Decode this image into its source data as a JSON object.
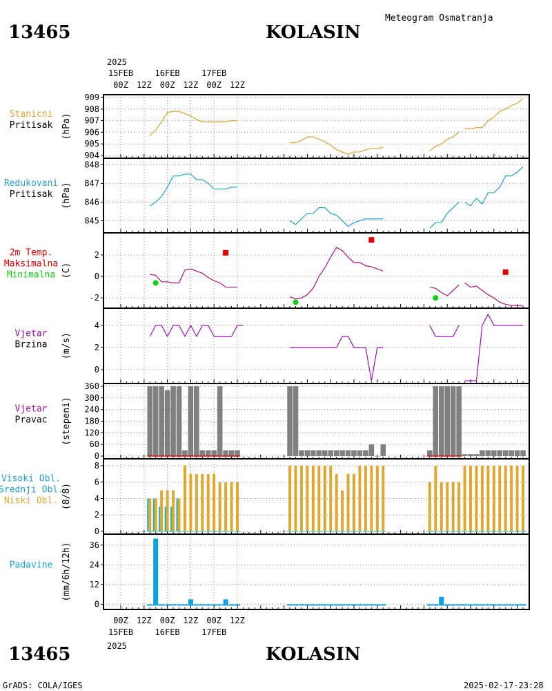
{
  "header": {
    "station_id": "13465",
    "station_name": "KOLASIN",
    "product": "Meteogram Osmatranja",
    "year": "2025",
    "footer_left": "GrADS: COLA/IGES",
    "footer_right": "2025-02-17-23:28"
  },
  "time_axis": {
    "labels": [
      "00Z",
      "12Z",
      "00Z",
      "12Z",
      "00Z",
      "12Z"
    ],
    "dates": [
      "15FEB",
      "16FEB",
      "17FEB"
    ]
  },
  "colors": {
    "station_pressure": "#e0a030",
    "reduced_pressure": "#20a0d0",
    "temp_line": "#b0107a",
    "max_temp": "#e00000",
    "min_temp": "#10d010",
    "wind_speed": "#a010b0",
    "wind_dir_bar": "#808080",
    "low_cloud": "#e0a830",
    "mid_cloud": "#20b0b0",
    "precip": "#10a0e0"
  },
  "chart_data": [
    {
      "type": "line",
      "name_lines": [
        "Stanicni",
        "Pritisak"
      ],
      "ylabel": "(hPa)",
      "ylim": [
        904,
        909
      ],
      "yticks": [
        904,
        905,
        906,
        907,
        908,
        909
      ],
      "segments": [
        {
          "x": [
            5,
            6,
            7,
            8,
            9,
            10,
            11,
            12,
            13,
            14,
            15,
            16,
            17,
            18,
            19,
            20
          ],
          "y": [
            905.7,
            906.2,
            906.9,
            907.7,
            907.8,
            907.8,
            907.6,
            907.4,
            907.1,
            906.9,
            906.9,
            906.9,
            906.9,
            906.9,
            907.0,
            907.0
          ]
        },
        {
          "x": [
            29,
            30,
            31,
            32,
            33,
            34,
            35,
            36,
            37,
            38,
            39,
            40,
            41,
            42,
            43,
            44,
            45
          ],
          "y": [
            905.1,
            905.1,
            905.3,
            905.6,
            905.6,
            905.4,
            905.2,
            904.9,
            904.5,
            904.3,
            904.1,
            904.3,
            904.3,
            904.5,
            904.6,
            904.6,
            904.7
          ]
        },
        {
          "x": [
            53,
            54,
            55,
            56,
            57,
            58
          ],
          "y": [
            904.4,
            904.8,
            905.0,
            905.4,
            905.6,
            906.0
          ]
        },
        {
          "x": [
            59,
            60,
            61,
            62,
            63,
            64,
            65,
            66,
            67,
            68,
            69
          ],
          "y": [
            906.3,
            906.3,
            906.4,
            906.4,
            907.0,
            907.3,
            907.8,
            908.0,
            908.3,
            908.5,
            908.9
          ]
        }
      ]
    },
    {
      "type": "line",
      "name_lines": [
        "Redukovani",
        "Pritisak"
      ],
      "ylabel": "(hPa)",
      "ylim": [
        844.5,
        848.2
      ],
      "yticks": [
        845,
        846,
        847,
        848
      ],
      "segments": [
        {
          "x": [
            5,
            6,
            7,
            8,
            9,
            10,
            11,
            12,
            13,
            14,
            15,
            16,
            17,
            18,
            19,
            20
          ],
          "y": [
            845.8,
            846.0,
            846.3,
            846.8,
            847.4,
            847.4,
            847.5,
            847.5,
            847.2,
            847.2,
            847.0,
            846.7,
            846.7,
            846.7,
            846.8,
            846.8
          ]
        },
        {
          "x": [
            29,
            30,
            31,
            32,
            33,
            34,
            35,
            36,
            37,
            38,
            39,
            40,
            41,
            42,
            43,
            44,
            45
          ],
          "y": [
            845.0,
            844.8,
            845.1,
            845.4,
            845.4,
            845.7,
            845.7,
            845.4,
            845.3,
            845.0,
            844.7,
            844.9,
            845.0,
            845.1,
            845.1,
            845.1,
            845.1
          ]
        },
        {
          "x": [
            53,
            54,
            55,
            56,
            57,
            58
          ],
          "y": [
            844.6,
            844.9,
            844.9,
            845.4,
            845.7,
            846.0
          ]
        },
        {
          "x": [
            59,
            60,
            61,
            62,
            63,
            64,
            65,
            66,
            67,
            68,
            69
          ],
          "y": [
            846.0,
            845.8,
            846.2,
            845.9,
            846.5,
            846.5,
            846.8,
            847.4,
            847.4,
            847.6,
            847.9
          ]
        }
      ]
    },
    {
      "type": "line",
      "name_lines": [
        "2m Temp.",
        "Maksimalna",
        "Minimalna"
      ],
      "ylabel": "(C)",
      "ylim": [
        -2.7,
        3.8
      ],
      "yticks": [
        -2,
        0,
        2
      ],
      "segments": [
        {
          "x": [
            5,
            6,
            7,
            8,
            9,
            10,
            11,
            12,
            13,
            14,
            15,
            16,
            17,
            18,
            19,
            20
          ],
          "y": [
            0.2,
            0.1,
            -0.5,
            -0.5,
            -0.6,
            -0.6,
            0.6,
            0.7,
            0.5,
            0.3,
            -0.1,
            -0.4,
            -0.6,
            -1.0,
            -1.0,
            -1.0
          ]
        },
        {
          "x": [
            29,
            30,
            31,
            32,
            33,
            34,
            35,
            36,
            37,
            38,
            39,
            40,
            41,
            42,
            43,
            44,
            45
          ],
          "y": [
            -1.9,
            -2.1,
            -2.0,
            -1.7,
            -1.1,
            0.0,
            0.8,
            1.8,
            2.7,
            2.4,
            1.8,
            1.3,
            1.3,
            1.0,
            0.9,
            0.7,
            0.5
          ]
        },
        {
          "x": [
            53,
            54,
            55,
            56,
            57,
            58
          ],
          "y": [
            -1.0,
            -1.1,
            -1.5,
            -1.8,
            -1.3,
            -0.8
          ]
        },
        {
          "x": [
            59,
            60,
            61,
            62,
            63,
            64,
            65,
            66,
            67,
            68,
            69
          ],
          "y": [
            -0.6,
            -1.0,
            -0.9,
            -1.3,
            -1.7,
            -2.0,
            -2.4,
            -2.6,
            -2.7,
            -2.7,
            -2.7
          ]
        }
      ],
      "max_points": {
        "x": [
          18,
          43,
          66
        ],
        "y": [
          2.2,
          3.4,
          0.4
        ]
      },
      "min_points": {
        "x": [
          6,
          30,
          54
        ],
        "y": [
          -0.6,
          -2.4,
          -2.0
        ]
      }
    },
    {
      "type": "line",
      "name_lines": [
        "Vjetar",
        "Brzina"
      ],
      "ylabel": "(m/s)",
      "ylim": [
        -1.0,
        5.3
      ],
      "yticks": [
        0,
        2,
        4
      ],
      "segments": [
        {
          "x": [
            5,
            6,
            7,
            8,
            9,
            10,
            11,
            12,
            13,
            14,
            15,
            16,
            17,
            18,
            19,
            20
          ],
          "y": [
            3,
            4,
            4,
            3,
            4,
            4,
            3,
            4,
            3,
            4,
            4,
            3,
            3,
            3,
            3,
            4
          ]
        },
        {
          "x": [
            29,
            30,
            31,
            32,
            33,
            34,
            35,
            36,
            37,
            38,
            39,
            40,
            41,
            42,
            43,
            44,
            45
          ],
          "y": [
            2,
            2,
            2,
            2,
            2,
            2,
            2,
            2,
            2,
            3,
            3,
            2,
            2,
            2,
            -1,
            2,
            2
          ]
        },
        {
          "x": [
            53,
            54,
            55,
            56,
            57,
            58
          ],
          "y": [
            4,
            3,
            3,
            3,
            3,
            4
          ]
        },
        {
          "x": [
            59,
            60,
            61,
            62,
            63,
            64,
            65,
            66,
            67,
            68,
            69
          ],
          "y": [
            -1,
            -1,
            -1,
            4,
            5,
            4,
            4,
            4,
            4,
            4,
            4
          ]
        },
        {
          "x": [
            20,
            21
          ],
          "y": [
            4,
            4
          ]
        }
      ]
    },
    {
      "type": "bar",
      "name_lines": [
        "Vjetar",
        "Pravac"
      ],
      "ylabel": "(stepeni)",
      "ylim": [
        0,
        360
      ],
      "yticks": [
        0,
        60,
        120,
        180,
        240,
        300,
        360
      ],
      "bars": {
        "x": [
          5,
          6,
          7,
          8,
          9,
          10,
          11,
          12,
          13,
          14,
          15,
          16,
          17,
          18,
          19,
          20,
          29,
          30,
          31,
          32,
          33,
          34,
          35,
          36,
          37,
          38,
          39,
          40,
          41,
          42,
          43,
          44,
          45,
          53,
          54,
          55,
          56,
          57,
          58,
          59,
          60,
          61,
          62,
          63,
          64,
          65,
          66,
          67,
          68,
          69
        ],
        "y": [
          360,
          360,
          360,
          340,
          360,
          360,
          30,
          360,
          360,
          30,
          30,
          30,
          360,
          30,
          30,
          30,
          360,
          360,
          30,
          30,
          30,
          30,
          30,
          30,
          30,
          30,
          30,
          30,
          30,
          30,
          60,
          0,
          60,
          30,
          360,
          360,
          360,
          360,
          360,
          10,
          10,
          10,
          30,
          30,
          30,
          30,
          30,
          30,
          30,
          30
        ]
      },
      "calm_segments": [
        [
          5,
          20
        ],
        [
          53,
          58
        ]
      ]
    },
    {
      "type": "bar",
      "name_lines": [
        "Visoki Obl.",
        "Srednji Obl.",
        "Niski Obl."
      ],
      "ylabel": "(8/8)",
      "ylim": [
        0,
        8.5
      ],
      "yticks": [
        0,
        2,
        4,
        6,
        8
      ],
      "series": [
        {
          "name": "Niski Obl.",
          "x": [
            5,
            6,
            7,
            8,
            9,
            10,
            11,
            12,
            13,
            14,
            15,
            16,
            17,
            18,
            19,
            20,
            29,
            30,
            31,
            32,
            33,
            34,
            35,
            36,
            37,
            38,
            39,
            40,
            41,
            42,
            43,
            44,
            45,
            53,
            54,
            55,
            56,
            57,
            58,
            59,
            60,
            61,
            62,
            63,
            64,
            65,
            66,
            67,
            68,
            69
          ],
          "y": [
            4,
            4,
            5,
            5,
            5,
            4,
            8,
            7,
            7,
            7,
            7,
            7,
            6,
            6,
            6,
            6,
            8,
            8,
            8,
            8,
            8,
            8,
            8,
            8,
            7,
            5,
            7,
            7,
            8,
            8,
            8,
            8,
            8,
            6,
            8,
            6,
            6,
            6,
            6,
            8,
            8,
            8,
            8,
            8,
            8,
            8,
            8,
            8,
            8,
            8
          ]
        },
        {
          "name": "Srednji Obl.",
          "x": [
            5,
            6,
            7,
            8,
            9,
            10
          ],
          "y": [
            4,
            4,
            3,
            3,
            3,
            4
          ]
        }
      ]
    },
    {
      "type": "bar",
      "name_lines": [
        "Padavine"
      ],
      "ylabel": "(mm/6h/12h)",
      "ylim": [
        -1.5,
        41
      ],
      "yticks": [
        0,
        12,
        24,
        36
      ],
      "bars": {
        "x": [
          6,
          12,
          18,
          55
        ],
        "y": [
          40,
          3,
          3,
          4.5
        ]
      },
      "trace_x": [
        5,
        6,
        7,
        8,
        9,
        10,
        11,
        12,
        13,
        14,
        15,
        16,
        17,
        18,
        19,
        20,
        29,
        30,
        31,
        32,
        33,
        34,
        35,
        36,
        37,
        38,
        39,
        40,
        41,
        42,
        43,
        44,
        45,
        53,
        54,
        55,
        56,
        57,
        58,
        59,
        60,
        61,
        62,
        63,
        64,
        65,
        66,
        67,
        68,
        69
      ]
    }
  ]
}
